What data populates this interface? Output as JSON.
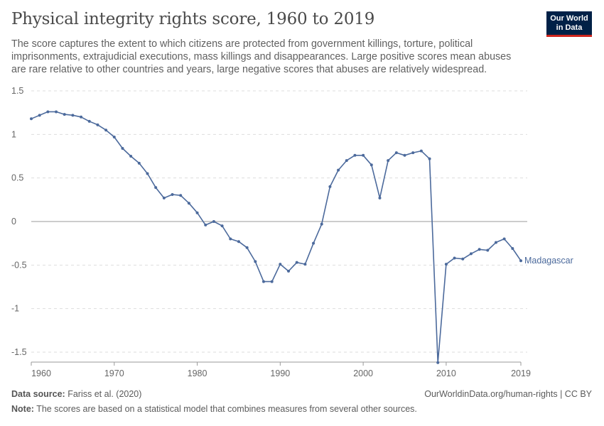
{
  "header": {
    "title": "Physical integrity rights score, 1960 to 2019",
    "subtitle": "The score captures the extent to which citizens are protected from government killings, torture, political imprisonments, extrajudicial executions, mass killings and disappearances. Large positive scores mean abuses are rare relative to other countries and years, large negative scores that abuses are relatively widespread.",
    "logo_line1": "Our World",
    "logo_line2": "in Data"
  },
  "footer": {
    "source_label": "Data source:",
    "source_text": "Fariss et al. (2020)",
    "link_text": "OurWorldinData.org/human-rights | CC BY",
    "note_label": "Note:",
    "note_text": "The scores are based on a statistical model that combines measures from several other sources."
  },
  "colors": {
    "series": "#4c6a9c",
    "grid": "#dddddd",
    "zero": "#999999"
  },
  "chart_data": {
    "type": "line",
    "title": "Physical integrity rights score, 1960 to 2019",
    "xlabel": "",
    "ylabel": "",
    "xlim": [
      1960,
      2019
    ],
    "ylim": [
      -1.5,
      1.5
    ],
    "x_ticks": [
      "1960",
      "1970",
      "1980",
      "1990",
      "2000",
      "2010",
      "2019"
    ],
    "x_tick_values": [
      1960,
      1970,
      1980,
      1990,
      2000,
      2010,
      2019
    ],
    "y_ticks": [
      "1.5",
      "1",
      "0.5",
      "0",
      "-0.5",
      "-1",
      "-1.5"
    ],
    "y_tick_values": [
      1.5,
      1,
      0.5,
      0,
      -0.5,
      -1,
      -1.5
    ],
    "grid": "horizontal dashed",
    "legend": "end-of-line label",
    "series": [
      {
        "name": "Madagascar",
        "x": [
          1960,
          1961,
          1962,
          1963,
          1964,
          1965,
          1966,
          1967,
          1968,
          1969,
          1970,
          1971,
          1972,
          1973,
          1974,
          1975,
          1976,
          1977,
          1978,
          1979,
          1980,
          1981,
          1982,
          1983,
          1984,
          1985,
          1986,
          1987,
          1988,
          1989,
          1990,
          1991,
          1992,
          1993,
          1994,
          1995,
          1996,
          1997,
          1998,
          1999,
          2000,
          2001,
          2002,
          2003,
          2004,
          2005,
          2006,
          2007,
          2008,
          2009,
          2010,
          2011,
          2012,
          2013,
          2014,
          2015,
          2016,
          2017,
          2018,
          2019
        ],
        "values": [
          1.18,
          1.22,
          1.26,
          1.26,
          1.23,
          1.22,
          1.2,
          1.15,
          1.11,
          1.05,
          0.97,
          0.84,
          0.75,
          0.67,
          0.55,
          0.39,
          0.27,
          0.31,
          0.3,
          0.21,
          0.1,
          -0.04,
          0.0,
          -0.05,
          -0.2,
          -0.23,
          -0.3,
          -0.46,
          -0.69,
          -0.69,
          -0.49,
          -0.57,
          -0.47,
          -0.49,
          -0.25,
          -0.03,
          0.4,
          0.59,
          0.7,
          0.76,
          0.76,
          0.65,
          0.27,
          0.7,
          0.79,
          0.76,
          0.79,
          0.81,
          0.72,
          -1.62,
          -0.49,
          -0.42,
          -0.43,
          -0.37,
          -0.32,
          -0.33,
          -0.24,
          -0.2,
          -0.31,
          -0.45
        ]
      }
    ]
  }
}
